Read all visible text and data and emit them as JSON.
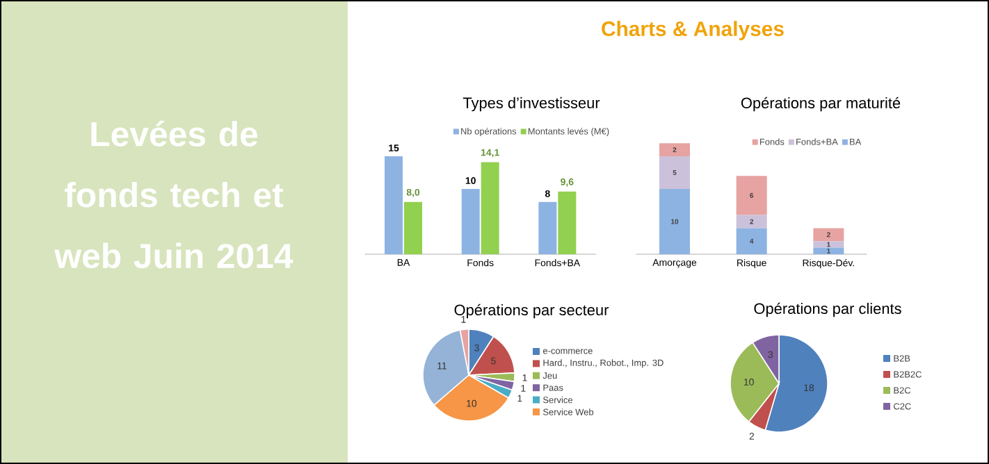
{
  "chart_data": [
    {
      "type": "other",
      "title": "Levées de fonds tech et web Juin 2014",
      "subtitle": "Charts & Analyses"
    },
    {
      "type": "bar",
      "title": "Types d’investisseur",
      "categories": [
        "BA",
        "Fonds",
        "Fonds+BA"
      ],
      "legend": "top",
      "series": [
        {
          "name": "Nb opérations",
          "color": "#8db3e2",
          "values": [
            15,
            10,
            8
          ],
          "value_labels": [
            "15",
            "10",
            "8"
          ]
        },
        {
          "name": "Montants levés (M€)",
          "color": "#92d050",
          "values": [
            8.0,
            14.1,
            9.6
          ],
          "value_labels": [
            "8,0",
            "14,1",
            "9,6"
          ]
        }
      ]
    },
    {
      "type": "bar",
      "title": "Opérations par maturité",
      "categories": [
        "Amorçage",
        "Risque",
        "Risque-Dév."
      ],
      "stacked": true,
      "legend": "top",
      "data_labels": true,
      "series": [
        {
          "name": "BA",
          "color": "#8db3e2",
          "values": [
            10,
            4,
            1
          ]
        },
        {
          "name": "Fonds+BA",
          "color": "#ccc1da",
          "values": [
            5,
            2,
            1
          ]
        },
        {
          "name": "Fonds",
          "color": "#e6a3a1",
          "values": [
            2,
            6,
            2
          ]
        }
      ]
    },
    {
      "type": "pie",
      "title": "Opérations par secteur",
      "legend": "right",
      "data_labels": true,
      "categories": [
        "e-commerce",
        "Hard., Instru., Robot., Imp. 3D",
        "Jeu",
        "Paas",
        "Service",
        "Service Web",
        null,
        null
      ],
      "values": [
        3,
        5,
        1,
        1,
        1,
        10,
        11,
        1
      ],
      "colors": [
        "#4f81bd",
        "#c0504d",
        "#9bbb59",
        "#8064a2",
        "#4bacc6",
        "#f79646",
        "#95b3d7",
        "#e6a3a1"
      ]
    },
    {
      "type": "pie",
      "title": "Opérations par clients",
      "legend": "right",
      "data_labels": true,
      "categories": [
        "B2B",
        "B2B2C",
        "B2C",
        "C2C"
      ],
      "values": [
        18,
        2,
        10,
        3
      ],
      "colors": [
        "#4f81bd",
        "#c0504d",
        "#9bbb59",
        "#8064a2"
      ]
    }
  ]
}
